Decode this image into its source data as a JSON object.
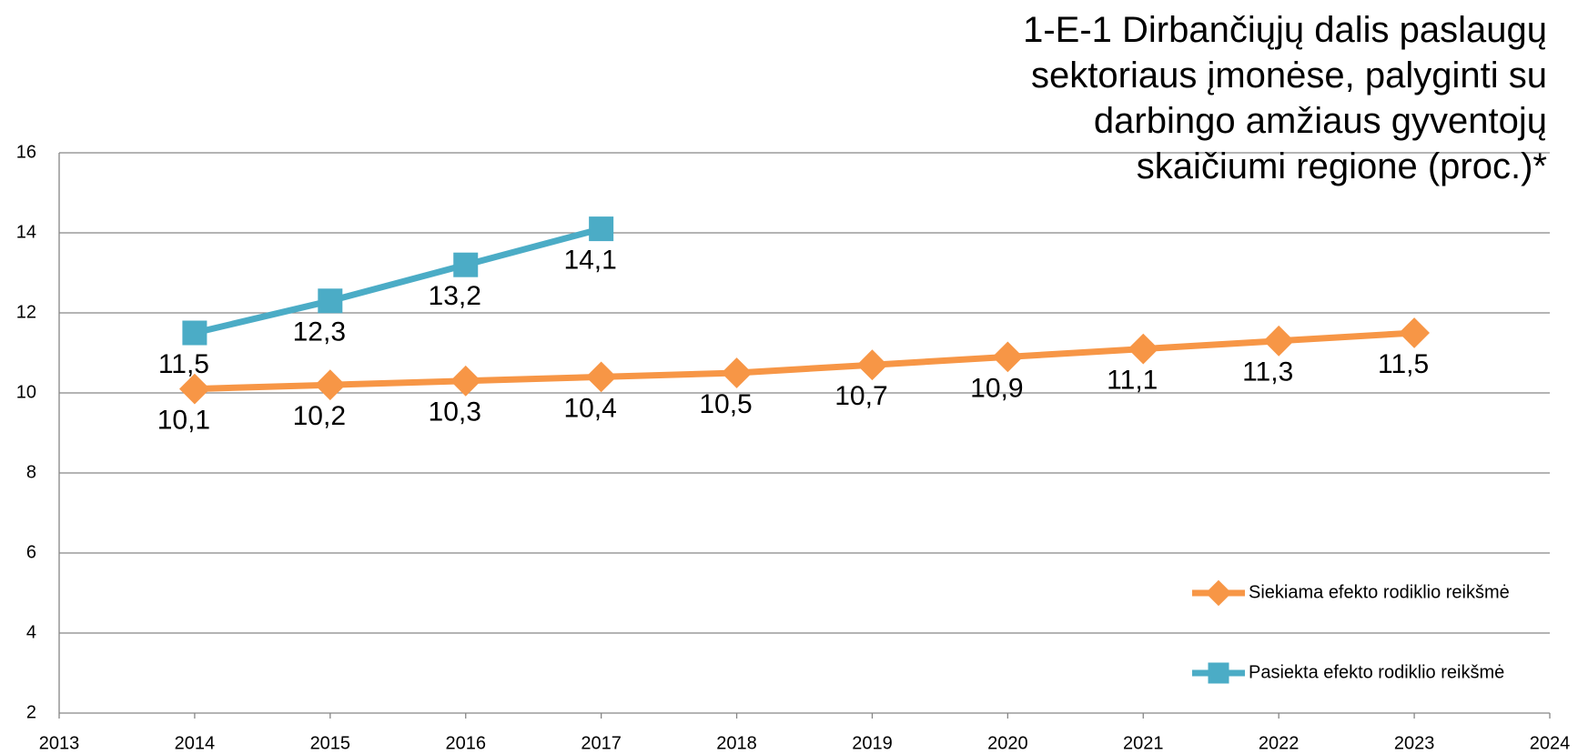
{
  "chart_data": {
    "type": "line",
    "title": "1-E-1 Dirbančiųjų dalis paslaugų sektoriaus įmonėse, palyginti su darbingo amžiaus gyventojų skaičiumi regione (proc.)*",
    "x": [
      2014,
      2015,
      2016,
      2017,
      2018,
      2019,
      2020,
      2021,
      2022,
      2023
    ],
    "xlim": [
      2013,
      2024
    ],
    "xticks": [
      2013,
      2014,
      2015,
      2016,
      2017,
      2018,
      2019,
      2020,
      2021,
      2022,
      2023,
      2024
    ],
    "ylim": [
      2,
      16
    ],
    "yticks": [
      2,
      4,
      6,
      8,
      10,
      12,
      14,
      16
    ],
    "grid": true,
    "legend": "right",
    "series": [
      {
        "name": "Siekiama efekto rodiklio reikšmė",
        "color": "#f79646",
        "marker": "diamond",
        "values": [
          10.1,
          10.2,
          10.3,
          10.4,
          10.5,
          10.7,
          10.9,
          11.1,
          11.3,
          11.5
        ],
        "value_labels": [
          "10,1",
          "10,2",
          "10,3",
          "10,4",
          "10,5",
          "10,7",
          "10,9",
          "11,1",
          "11,3",
          "11,5"
        ]
      },
      {
        "name": "Pasiekta efekto rodiklio reikšmė",
        "color": "#4bacc6",
        "marker": "square",
        "values": [
          11.5,
          12.3,
          13.2,
          14.1,
          null,
          null,
          null,
          null,
          null,
          null
        ],
        "value_labels": [
          "11,5",
          "12,3",
          "13,2",
          "14,1",
          null,
          null,
          null,
          null,
          null,
          null
        ]
      }
    ]
  }
}
